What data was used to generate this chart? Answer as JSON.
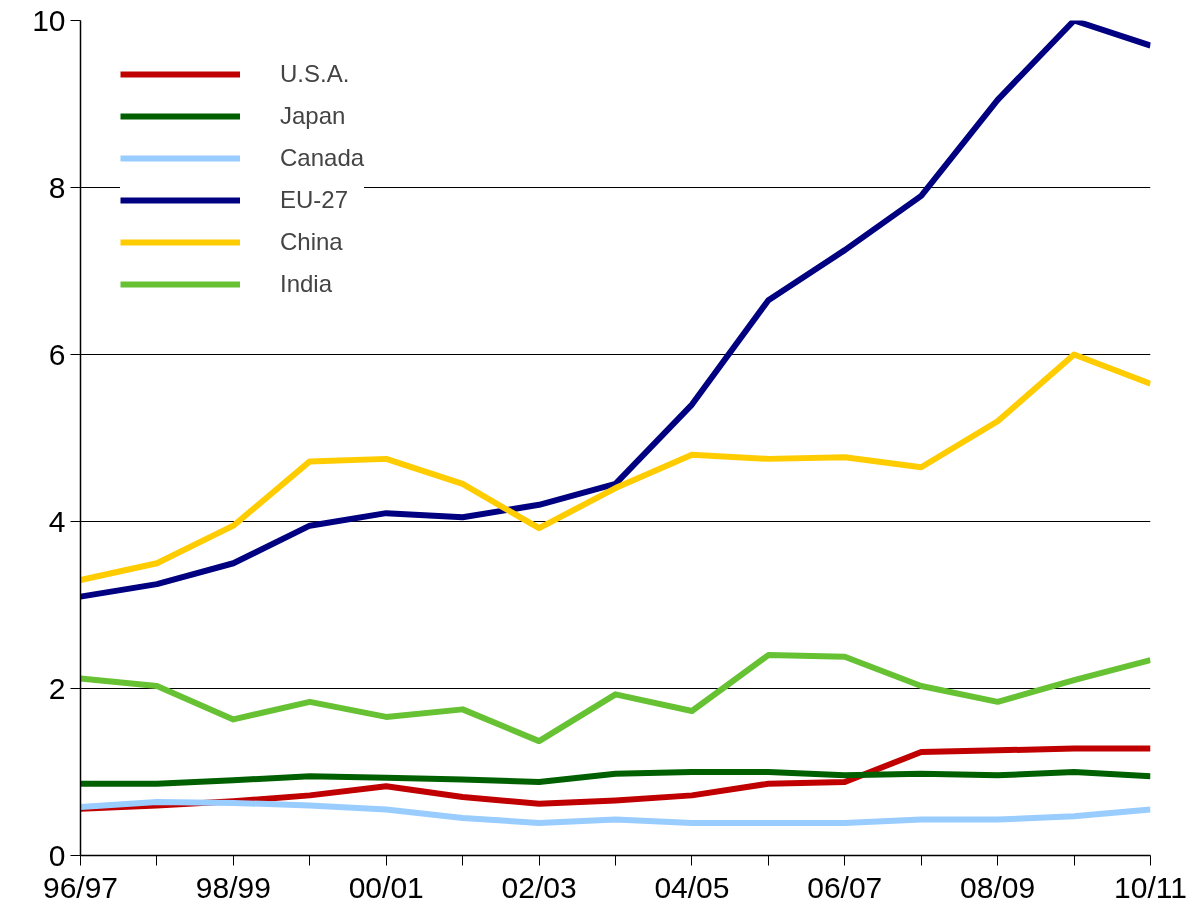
{
  "chart_data": {
    "type": "line",
    "categories": [
      "96/97",
      null,
      "98/99",
      null,
      "00/01",
      null,
      "02/03",
      null,
      "04/05",
      null,
      "06/07",
      null,
      "08/09",
      null,
      "10/11"
    ],
    "ylim": [
      0,
      10
    ],
    "yticks": [
      0,
      2,
      4,
      6,
      8,
      10
    ],
    "grid": "y",
    "legend": "top left",
    "marker": "none",
    "line_style": "solid",
    "series": [
      {
        "name": "U.S.A.",
        "color": "#c00000",
        "values": [
          0.56,
          0.6,
          0.65,
          0.72,
          0.83,
          0.7,
          0.62,
          0.66,
          0.72,
          0.86,
          0.88,
          1.24,
          1.26,
          1.28,
          1.28
        ]
      },
      {
        "name": "Japan",
        "color": "#006000",
        "values": [
          0.86,
          0.86,
          0.9,
          0.95,
          0.93,
          0.91,
          0.88,
          0.98,
          1.0,
          1.0,
          0.96,
          0.98,
          0.96,
          1.0,
          0.95
        ]
      },
      {
        "name": "Canada",
        "color": "#99ccff",
        "values": [
          0.58,
          0.64,
          0.63,
          0.6,
          0.55,
          0.45,
          0.39,
          0.43,
          0.39,
          0.39,
          0.39,
          0.43,
          0.43,
          0.47,
          0.55
        ]
      },
      {
        "name": "EU-27",
        "color": "#000080",
        "values": [
          3.1,
          3.25,
          3.5,
          3.95,
          4.1,
          4.05,
          4.2,
          4.45,
          5.4,
          6.65,
          7.25,
          7.9,
          9.05,
          10.0,
          9.7
        ]
      },
      {
        "name": "China",
        "color": "#ffcc00",
        "values": [
          3.3,
          3.5,
          3.95,
          4.72,
          4.75,
          4.45,
          3.92,
          4.4,
          4.8,
          4.75,
          4.77,
          4.65,
          5.2,
          6.0,
          5.65
        ]
      },
      {
        "name": "India",
        "color": "#66c133",
        "values": [
          2.12,
          2.03,
          1.63,
          1.84,
          1.66,
          1.75,
          1.37,
          1.93,
          1.73,
          2.4,
          2.38,
          2.03,
          1.84,
          2.1,
          2.34
        ]
      }
    ]
  }
}
